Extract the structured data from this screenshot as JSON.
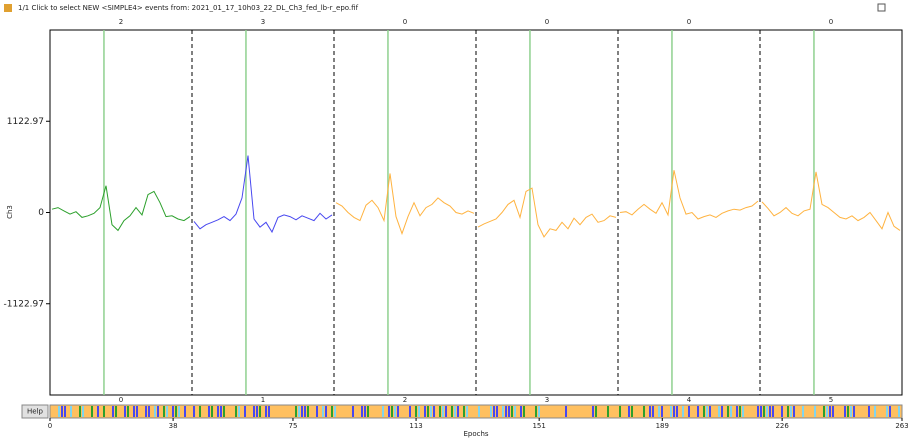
{
  "window": {
    "title": "1/1 Click to select NEW <SIMPLE4> events from: 2021_01_17_10h03_22_DL_Ch3_fed_lb-r_epo.fif",
    "help": "Help"
  },
  "chart_data": {
    "type": "line",
    "ylabel": "Ch3",
    "xlabel": "Epochs",
    "ylim": [
      -2245.94,
      2245.94
    ],
    "yticks": [
      1122.97,
      0,
      -1122.97
    ],
    "xlim": [
      0,
      263
    ],
    "xticks": [
      0,
      38,
      75,
      113,
      151,
      189,
      226,
      263
    ],
    "event_line_color": "#8fd18f",
    "epochs": [
      {
        "number": 0,
        "event": 2,
        "color": "#2ca02c",
        "values": [
          40,
          60,
          20,
          -20,
          10,
          -60,
          -40,
          -10,
          60,
          330,
          -150,
          -220,
          -100,
          -40,
          60,
          -30,
          220,
          260,
          120,
          -50,
          -40,
          -80,
          -100,
          -50
        ]
      },
      {
        "number": 1,
        "event": 3,
        "color": "#4848f0",
        "values": [
          -110,
          -200,
          -150,
          -120,
          -90,
          -50,
          -100,
          -20,
          180,
          700,
          -80,
          -180,
          -120,
          -240,
          -60,
          -30,
          -50,
          -90,
          -40,
          -70,
          -100,
          -10,
          -80,
          -30
        ]
      },
      {
        "number": 2,
        "event": 0,
        "color": "#ffb340",
        "values": [
          120,
          80,
          0,
          -60,
          -100,
          90,
          150,
          60,
          -100,
          480,
          -50,
          -260,
          -50,
          120,
          -40,
          60,
          100,
          180,
          120,
          80,
          0,
          -20,
          20,
          -10
        ]
      },
      {
        "number": 3,
        "event": 0,
        "color": "#ffb340",
        "values": [
          -180,
          -140,
          -110,
          -80,
          0,
          100,
          150,
          -60,
          260,
          300,
          -150,
          -300,
          -200,
          -220,
          -120,
          -200,
          -70,
          -150,
          -60,
          -20,
          -120,
          -100,
          -40,
          -60
        ]
      },
      {
        "number": 4,
        "event": 0,
        "color": "#ffb340",
        "values": [
          0,
          10,
          -30,
          40,
          100,
          40,
          -10,
          120,
          -30,
          520,
          180,
          -20,
          0,
          -80,
          -50,
          -30,
          -60,
          -10,
          20,
          40,
          30,
          60,
          80,
          140
        ]
      },
      {
        "number": 5,
        "event": 0,
        "color": "#ffb340",
        "values": [
          130,
          50,
          -40,
          0,
          60,
          -10,
          -40,
          20,
          40,
          500,
          100,
          60,
          0,
          -60,
          -80,
          -40,
          -100,
          -60,
          0,
          -100,
          -200,
          0,
          -170,
          -220
        ]
      }
    ]
  }
}
